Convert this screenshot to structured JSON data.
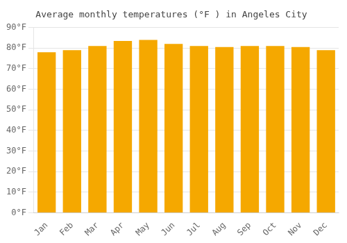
{
  "chart_data": {
    "type": "bar",
    "title": "Average monthly temperatures (°F ) in Angeles City",
    "categories": [
      "Jan",
      "Feb",
      "Mar",
      "Apr",
      "May",
      "Jun",
      "Jul",
      "Aug",
      "Sep",
      "Oct",
      "Nov",
      "Dec"
    ],
    "values": [
      78,
      79,
      81,
      83.5,
      84,
      82,
      81,
      80.5,
      81,
      81,
      80.5,
      79
    ],
    "color": "#F5A800",
    "ylim": [
      0,
      90
    ],
    "yticks": [
      {
        "value": 0,
        "label": "0°F"
      },
      {
        "value": 10,
        "label": "10°F"
      },
      {
        "value": 20,
        "label": "20°F"
      },
      {
        "value": 30,
        "label": "30°F"
      },
      {
        "value": 40,
        "label": "40°F"
      },
      {
        "value": 50,
        "label": "50°F"
      },
      {
        "value": 60,
        "label": "60°F"
      },
      {
        "value": 70,
        "label": "70°F"
      },
      {
        "value": 80,
        "label": "80°F"
      },
      {
        "value": 90,
        "label": "90°F"
      }
    ],
    "grid": true
  }
}
